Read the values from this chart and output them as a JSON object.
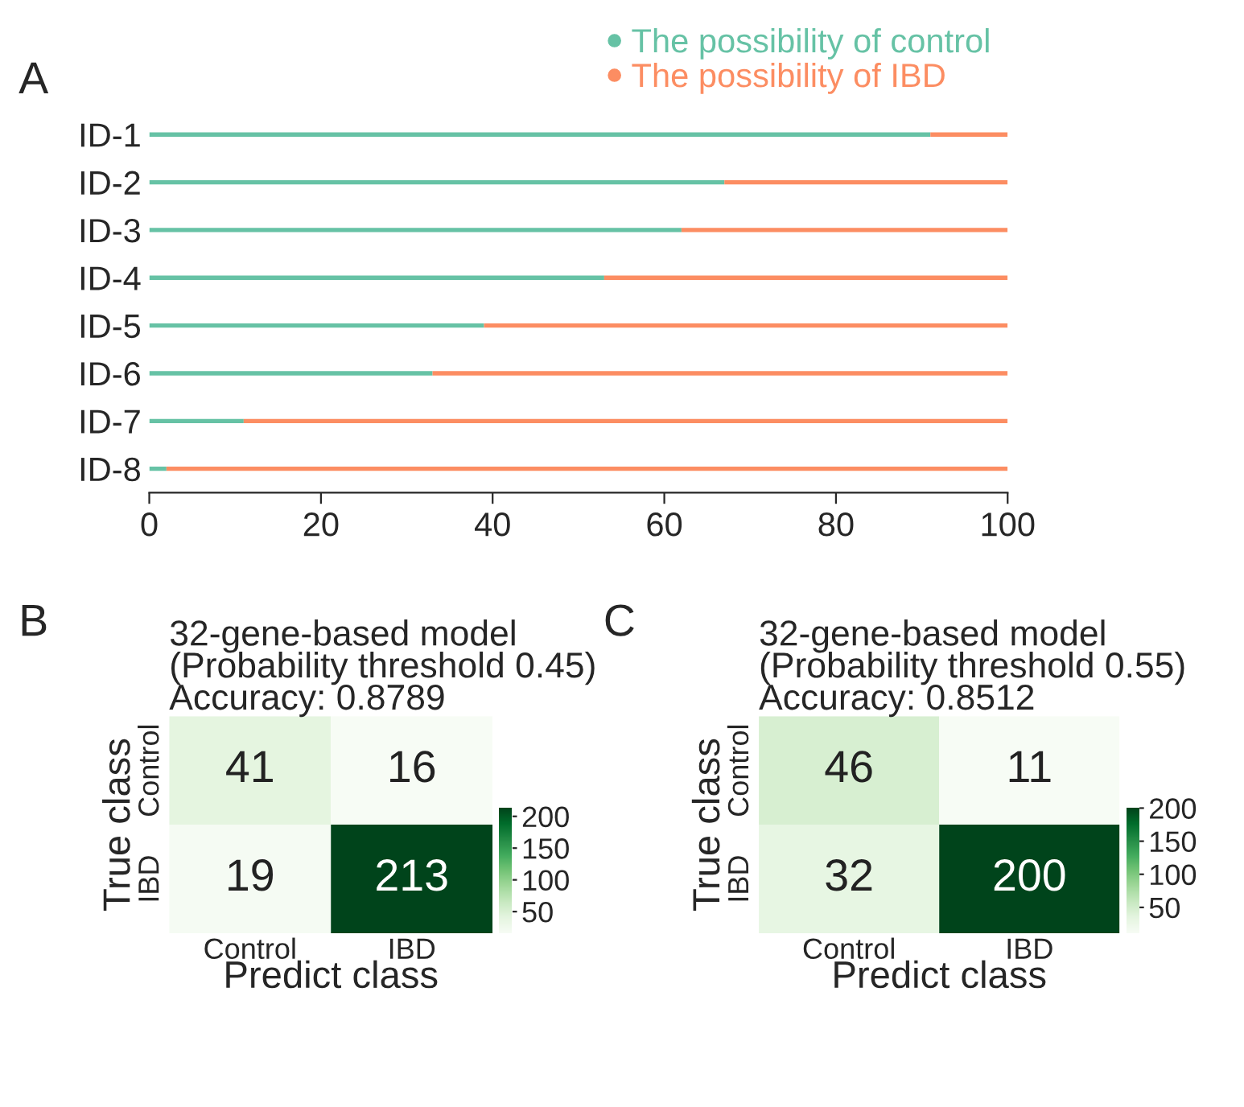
{
  "chart_data": [
    {
      "type": "bar",
      "orientation": "horizontal",
      "stacked": true,
      "categories": [
        "ID-1",
        "ID-2",
        "ID-3",
        "ID-4",
        "ID-5",
        "ID-6",
        "ID-7",
        "ID-8"
      ],
      "series": [
        {
          "name": "The possibility of control",
          "color": "#66c2a5",
          "values": [
            91,
            67,
            62,
            53,
            39,
            33,
            11,
            2
          ]
        },
        {
          "name": "The possibility of IBD",
          "color": "#fc8d62",
          "values": [
            9,
            33,
            38,
            47,
            61,
            67,
            89,
            98
          ]
        }
      ],
      "xlim": [
        0,
        100
      ],
      "xticks": [
        0,
        20,
        40,
        60,
        80,
        100
      ],
      "legend": "top right",
      "grid": false,
      "annotations": [
        "A"
      ]
    },
    {
      "type": "heatmap",
      "title": "32-gene-based model\n(Probability threshold 0.45)\nAccuracy: 0.8789",
      "xlabel": "Predict class",
      "ylabel": "True class",
      "categories": [
        "Control",
        "IBD"
      ],
      "y_categories": [
        "Control",
        "IBD"
      ],
      "cells": [
        [
          41,
          16
        ],
        [
          19,
          213
        ]
      ],
      "clim": [
        16,
        213
      ],
      "cticks": [
        50,
        100,
        150,
        200
      ],
      "data_labels": true,
      "annotations": [
        "B"
      ]
    },
    {
      "type": "heatmap",
      "title": "32-gene-based model\n(Probability threshold 0.55)\nAccuracy: 0.8512",
      "xlabel": "Predict class",
      "ylabel": "True class",
      "categories": [
        "Control",
        "IBD"
      ],
      "y_categories": [
        "Control",
        "IBD"
      ],
      "cells": [
        [
          46,
          11
        ],
        [
          32,
          200
        ]
      ],
      "clim": [
        11,
        200
      ],
      "cticks": [
        50,
        100,
        150,
        200
      ],
      "data_labels": true,
      "annotations": [
        "C"
      ]
    }
  ]
}
